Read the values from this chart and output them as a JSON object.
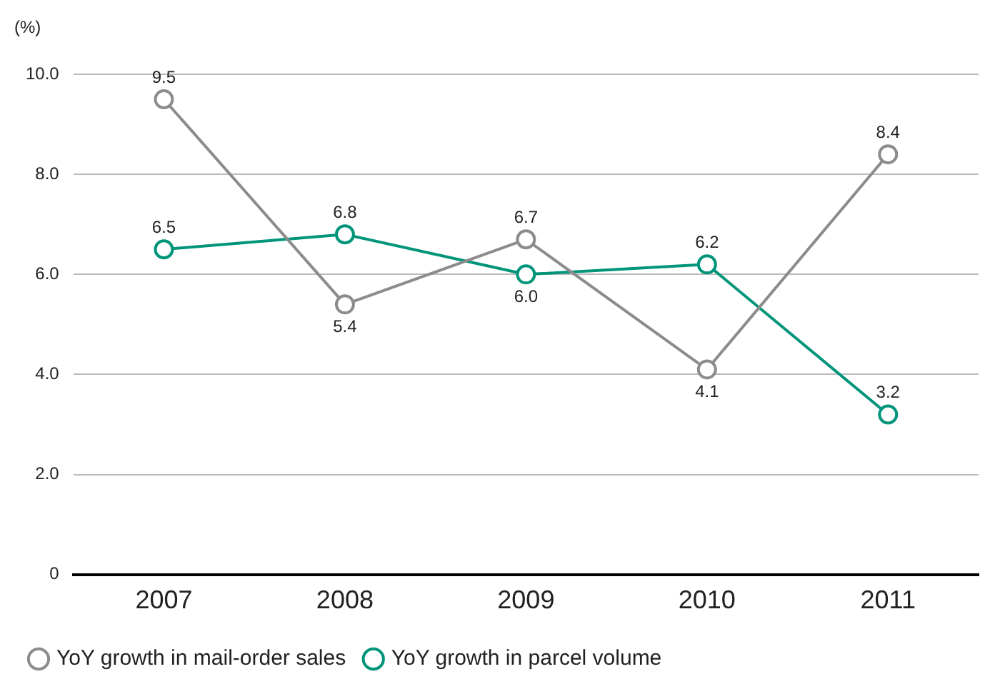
{
  "chart_data": {
    "type": "line",
    "ylabel": "(%)",
    "categories": [
      "2007",
      "2008",
      "2009",
      "2010",
      "2011"
    ],
    "series": [
      {
        "name": "YoY growth in mail-order sales",
        "color": "#8c8c8c",
        "values": [
          9.5,
          5.4,
          6.7,
          4.1,
          8.4
        ],
        "value_labels": [
          "9.5",
          "5.4",
          "6.7",
          "4.1",
          "8.4"
        ]
      },
      {
        "name": "YoY growth in parcel volume",
        "color": "#00957a",
        "values": [
          6.5,
          6.8,
          6.0,
          6.2,
          3.2
        ],
        "value_labels": [
          "6.5",
          "6.8",
          "6.0",
          "6.2",
          "3.2"
        ]
      }
    ],
    "ylim": [
      0,
      10
    ],
    "yticks": [
      {
        "value": 0,
        "label": "0"
      },
      {
        "value": 2,
        "label": "2.0"
      },
      {
        "value": 4,
        "label": "4.0"
      },
      {
        "value": 6,
        "label": "6.0"
      },
      {
        "value": 8,
        "label": "8.0"
      },
      {
        "value": 10,
        "label": "10.0"
      }
    ],
    "grid": "y",
    "legend": "bottom",
    "marker": "circle",
    "line_style": "solid"
  }
}
